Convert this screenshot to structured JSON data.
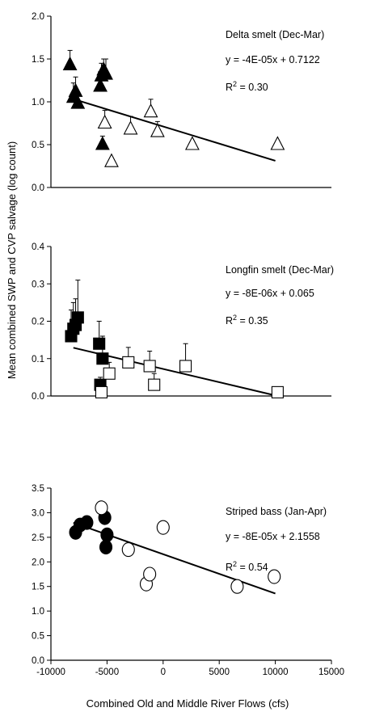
{
  "ylabel": "Mean combined SWP and CVP salvage (log count)",
  "xlabel": "Combined Old and Middle River Flows (cfs)",
  "chart_data": [
    {
      "type": "scatter",
      "title": "Delta smelt (Dec-Mar)",
      "equation": "y = -4E-05x + 0.7122",
      "r2_prefix": "R",
      "r2_sup": "2",
      "r2_value": " = 0.30",
      "ylim": [
        0,
        2.0
      ],
      "yticks": [
        "0.0",
        "0.5",
        "1.0",
        "1.5",
        "2.0"
      ],
      "marker": "triangle",
      "trend": {
        "x": [
          -7500,
          10000
        ],
        "y": [
          1.0122,
          0.3122
        ]
      },
      "series": [
        {
          "fill": "filled",
          "points": [
            [
              -8300,
              1.43
            ],
            [
              -8000,
              1.05
            ],
            [
              -7800,
              1.12
            ],
            [
              -7600,
              0.98
            ],
            [
              -5600,
              1.18
            ],
            [
              -5500,
              1.3
            ],
            [
              -5300,
              1.37
            ],
            [
              -5100,
              1.32
            ],
            [
              -5400,
              0.5
            ]
          ],
          "err": [
            0.17,
            0.17,
            0.17,
            0.12,
            0.17,
            0.15,
            0.13,
            0.18,
            0.1
          ]
        },
        {
          "fill": "open",
          "points": [
            [
              -5200,
              0.75
            ],
            [
              -4600,
              0.3
            ],
            [
              -2900,
              0.68
            ],
            [
              -1100,
              0.88
            ],
            [
              -500,
              0.65
            ],
            [
              2600,
              0.5
            ],
            [
              10200,
              0.5
            ]
          ],
          "err": [
            0.15,
            0,
            0.15,
            0.15,
            0.12,
            0,
            0
          ]
        }
      ]
    },
    {
      "type": "scatter",
      "title": "Longfin smelt (Dec-Mar)",
      "equation": "y = -8E-06x + 0.065",
      "r2_prefix": "R",
      "r2_sup": "2",
      "r2_value": " = 0.35",
      "ylim": [
        0,
        0.4
      ],
      "yticks": [
        "0.0",
        "0.1",
        "0.2",
        "0.3",
        "0.4"
      ],
      "marker": "square",
      "trend": {
        "x": [
          -8000,
          10200
        ],
        "y": [
          0.129,
          0.0
        ]
      },
      "series": [
        {
          "fill": "filled",
          "points": [
            [
              -8200,
              0.16
            ],
            [
              -8000,
              0.18
            ],
            [
              -7800,
              0.19
            ],
            [
              -7600,
              0.21
            ],
            [
              -5700,
              0.14
            ],
            [
              -5400,
              0.1
            ],
            [
              -5600,
              0.03
            ]
          ],
          "err": [
            0.07,
            0.07,
            0.07,
            0.1,
            0.06,
            0.06,
            0.02
          ]
        },
        {
          "fill": "open",
          "points": [
            [
              -5500,
              0.01
            ],
            [
              -4800,
              0.06
            ],
            [
              -3100,
              0.09
            ],
            [
              -1200,
              0.08
            ],
            [
              -800,
              0.03
            ],
            [
              2000,
              0.08
            ],
            [
              10200,
              0.01
            ]
          ],
          "err": [
            0,
            0.03,
            0.04,
            0.04,
            0.03,
            0.06,
            0
          ]
        }
      ]
    },
    {
      "type": "scatter",
      "title": "Striped bass (Jan-Apr)",
      "equation": "y = -8E-05x + 2.1558",
      "r2_prefix": "R",
      "r2_sup": "2",
      "r2_value": " = 0.54",
      "ylim": [
        0,
        3.5
      ],
      "yticks": [
        "0.0",
        "0.5",
        "1.0",
        "1.5",
        "2.0",
        "2.5",
        "3.0",
        "3.5"
      ],
      "xlim": [
        -10000,
        15000
      ],
      "xticks": [
        "-10000",
        "-5000",
        "0",
        "5000",
        "10000",
        "15000"
      ],
      "marker": "circle",
      "trend": {
        "x": [
          -8000,
          10000
        ],
        "y": [
          2.7958,
          1.3558
        ]
      },
      "series": [
        {
          "fill": "filled",
          "points": [
            [
              -7800,
              2.6
            ],
            [
              -7400,
              2.75
            ],
            [
              -6800,
              2.8
            ],
            [
              -5200,
              2.9
            ],
            [
              -5000,
              2.55
            ],
            [
              -5100,
              2.3
            ]
          ],
          "err": [
            0,
            0,
            0,
            0,
            0,
            0
          ]
        },
        {
          "fill": "open",
          "points": [
            [
              -5500,
              3.1
            ],
            [
              -3100,
              2.25
            ],
            [
              0,
              2.7
            ],
            [
              -1500,
              1.55
            ],
            [
              -1200,
              1.75
            ],
            [
              6600,
              1.5
            ],
            [
              9900,
              1.7
            ]
          ],
          "err": [
            0,
            0,
            0,
            0,
            0,
            0,
            0
          ]
        }
      ]
    }
  ]
}
